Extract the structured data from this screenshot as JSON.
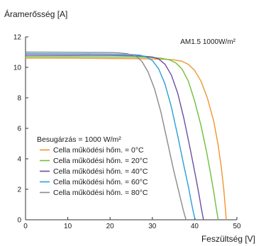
{
  "chart_data": {
    "type": "line",
    "ylabel": "Áramerősség [A]",
    "xlabel": "Feszültség  [V]",
    "annotation": "AM1.5  1000W/m²",
    "xlim": [
      0,
      50
    ],
    "ylim": [
      0,
      12
    ],
    "xticks": [
      "0",
      "10",
      "20",
      "30",
      "40",
      "50"
    ],
    "yticks": [
      "0",
      "2",
      "4",
      "6",
      "8",
      "10",
      "12"
    ],
    "grid": false,
    "legend_position": "bottom-left",
    "legend_title": "Besugárzás = 1000 W/m²",
    "series": [
      {
        "name": "Cella működési hőm. = 0°C",
        "color": "#F0952E",
        "x": [
          0,
          10,
          20,
          25,
          30,
          33,
          35,
          37,
          38.5,
          40,
          41.5,
          43,
          44.5,
          45.5,
          46.3,
          46.9,
          47.2,
          47.4,
          47.5
        ],
        "y": [
          10.6,
          10.6,
          10.58,
          10.57,
          10.55,
          10.53,
          10.5,
          10.4,
          10.2,
          9.8,
          9.1,
          8.0,
          6.5,
          5.0,
          3.5,
          2.0,
          1.0,
          0.3,
          0
        ]
      },
      {
        "name": "Cella működési hőm. = 20°C",
        "color": "#6EBF3A",
        "x": [
          0,
          10,
          20,
          25,
          30,
          32,
          34,
          35.5,
          37,
          38.5,
          40,
          41.5,
          42.8,
          43.8,
          44.6,
          45.1,
          45.4,
          45.6
        ],
        "y": [
          10.7,
          10.69,
          10.68,
          10.67,
          10.64,
          10.6,
          10.5,
          10.3,
          9.9,
          9.1,
          7.8,
          6.2,
          4.5,
          3.0,
          1.7,
          0.8,
          0.3,
          0
        ]
      },
      {
        "name": "Cella működési hőm. = 40°C",
        "color": "#6A4FA0",
        "x": [
          0,
          10,
          20,
          25,
          28,
          30,
          31.5,
          33,
          34.5,
          36,
          37.5,
          39,
          40.2,
          41,
          41.5,
          41.9,
          42.1
        ],
        "y": [
          10.8,
          10.79,
          10.78,
          10.76,
          10.73,
          10.68,
          10.55,
          10.2,
          9.5,
          8.3,
          6.6,
          4.6,
          2.9,
          1.7,
          0.9,
          0.3,
          0
        ]
      },
      {
        "name": "Cella működési hőm. = 60°C",
        "color": "#2A9FD8",
        "x": [
          0,
          10,
          20,
          25,
          27,
          28.5,
          30,
          31.5,
          33,
          34.5,
          36,
          37.5,
          38.5,
          39.2,
          39.7,
          40,
          40.2
        ],
        "y": [
          10.9,
          10.89,
          10.87,
          10.84,
          10.8,
          10.7,
          10.45,
          9.9,
          8.9,
          7.4,
          5.5,
          3.5,
          2.2,
          1.2,
          0.5,
          0.15,
          0
        ]
      },
      {
        "name": "Cella működési hőm. = 80°C",
        "color": "#8A8A8A",
        "x": [
          0,
          10,
          20,
          22,
          24,
          26,
          27.5,
          29,
          30.5,
          32,
          33.5,
          35,
          36.2,
          37,
          37.5,
          37.8,
          38
        ],
        "y": [
          11.0,
          10.99,
          10.97,
          10.95,
          10.9,
          10.75,
          10.4,
          9.7,
          8.6,
          7.1,
          5.2,
          3.3,
          1.9,
          1.0,
          0.45,
          0.15,
          0
        ]
      }
    ]
  }
}
